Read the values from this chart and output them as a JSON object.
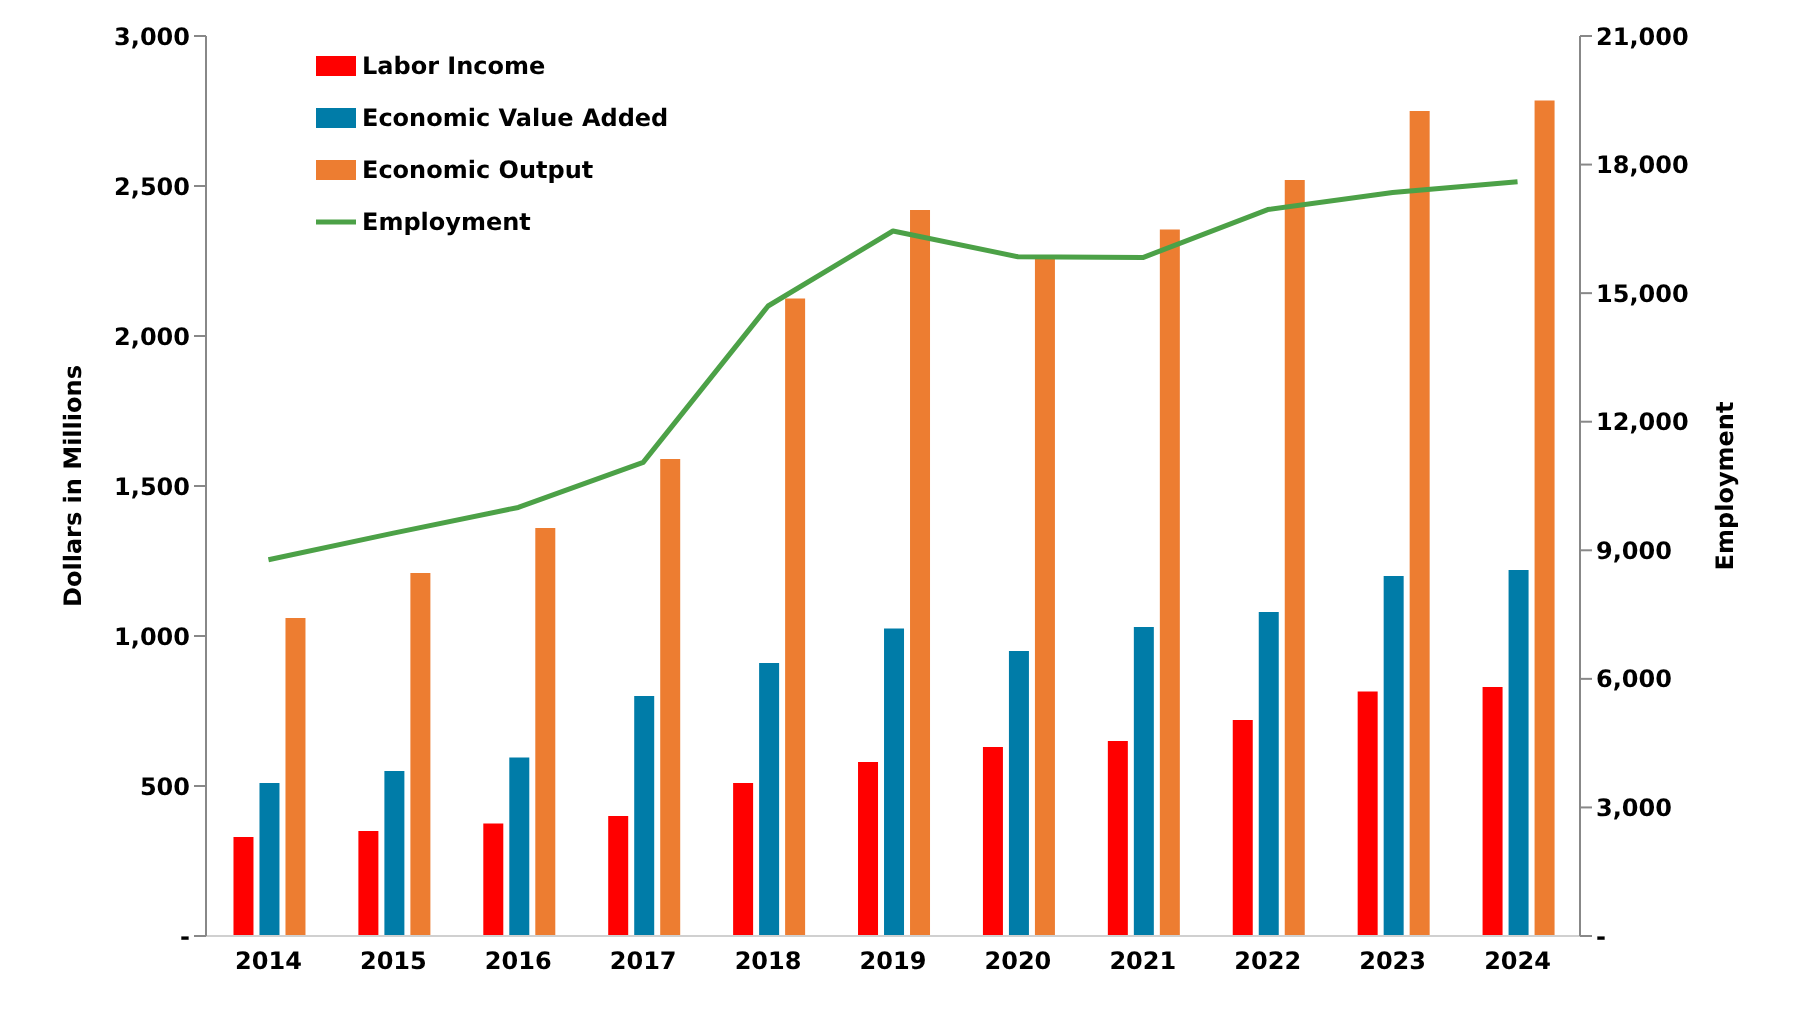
{
  "chart_data": {
    "type": "bar",
    "ylabel": "Dollars in Millions",
    "y2label": "Employment",
    "categories": [
      "2014",
      "2015",
      "2016",
      "2017",
      "2018",
      "2019",
      "2020",
      "2021",
      "2022",
      "2023",
      "2024"
    ],
    "series": [
      {
        "name": "Labor Income",
        "color": "#ff0000",
        "values": [
          330,
          350,
          375,
          400,
          510,
          580,
          630,
          650,
          720,
          815,
          830
        ]
      },
      {
        "name": "Economic Value Added",
        "color": "#007ca8",
        "values": [
          510,
          550,
          595,
          800,
          910,
          1025,
          950,
          1030,
          1080,
          1200,
          1220
        ]
      },
      {
        "name": "Economic Output",
        "color": "#ed7d31",
        "values": [
          1060,
          1210,
          1360,
          1590,
          2125,
          2420,
          2270,
          2355,
          2520,
          2750,
          2785
        ]
      },
      {
        "name": "Employment",
        "type": "line",
        "axis": "y2",
        "color": "#4ca147",
        "values": [
          8780,
          9400,
          10000,
          11050,
          14700,
          16450,
          15850,
          15830,
          16950,
          17350,
          17600
        ]
      }
    ],
    "ylim": [
      0,
      3000
    ],
    "yticks": [
      {
        "value": 0,
        "label": "-"
      },
      {
        "value": 500,
        "label": "500"
      },
      {
        "value": 1000,
        "label": "1,000"
      },
      {
        "value": 1500,
        "label": "1,500"
      },
      {
        "value": 2000,
        "label": "2,000"
      },
      {
        "value": 2500,
        "label": "2,500"
      },
      {
        "value": 3000,
        "label": "3,000"
      }
    ],
    "y2lim": [
      0,
      21000
    ],
    "y2ticks": [
      {
        "value": 0,
        "label": "-"
      },
      {
        "value": 3000,
        "label": "3,000"
      },
      {
        "value": 6000,
        "label": "6,000"
      },
      {
        "value": 9000,
        "label": "9,000"
      },
      {
        "value": 12000,
        "label": "12,000"
      },
      {
        "value": 15000,
        "label": "15,000"
      },
      {
        "value": 18000,
        "label": "18,000"
      },
      {
        "value": 21000,
        "label": "21,000"
      }
    ],
    "grid": false,
    "legend": "top left",
    "marker": "none",
    "line_style": "solid"
  }
}
